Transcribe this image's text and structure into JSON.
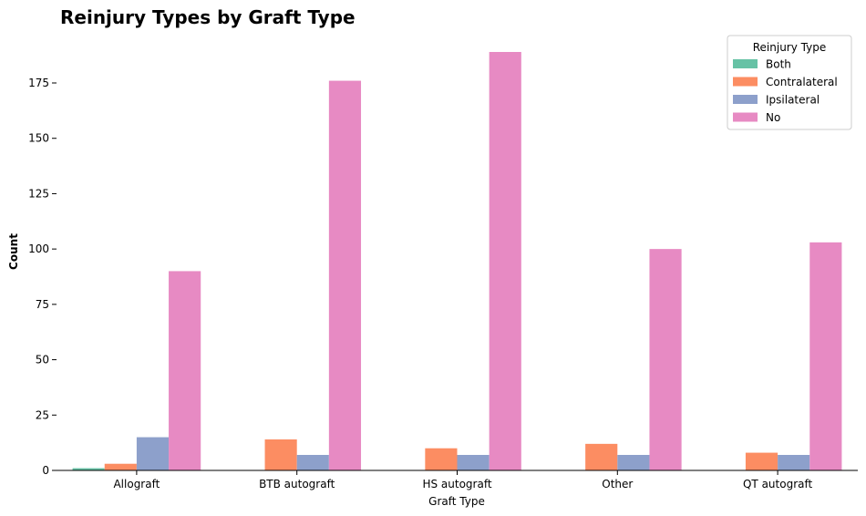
{
  "chart_data": {
    "type": "bar",
    "title": "Reinjury Types by Graft Type",
    "xlabel": "Graft Type",
    "ylabel": "Count",
    "categories": [
      "Allograft",
      "BTB autograft",
      "HS autograft",
      "Other",
      "QT autograft"
    ],
    "series": [
      {
        "name": "Both",
        "color": "#66c2a5",
        "values": [
          1,
          0,
          0,
          0,
          0
        ]
      },
      {
        "name": "Contralateral",
        "color": "#fc8d62",
        "values": [
          3,
          14,
          10,
          12,
          8
        ]
      },
      {
        "name": "Ipsilateral",
        "color": "#8da0cb",
        "values": [
          15,
          7,
          7,
          7,
          7
        ]
      },
      {
        "name": "No",
        "color": "#e78ac3",
        "values": [
          90,
          176,
          189,
          100,
          103
        ]
      }
    ],
    "ylim": [
      0,
      189
    ],
    "yticks": [
      0,
      25,
      50,
      75,
      100,
      125,
      150,
      175
    ],
    "legend": {
      "title": "Reinjury Type",
      "position": "top-right"
    },
    "grid": false
  }
}
